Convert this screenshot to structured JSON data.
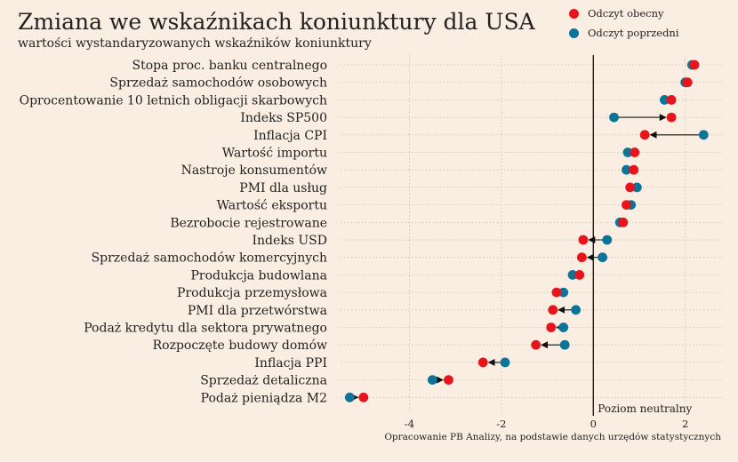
{
  "header": {
    "title": "Zmiana we wskaźnikach koniunktury dla USA",
    "subtitle": "wartości wystandaryzowanych wskaźników koniunktury"
  },
  "legend": {
    "current": "Odczyt obecny",
    "previous": "Odczyt poprzedni"
  },
  "source": "Opracowanie PB Analizy, na podstawie danych urzędów statystycznych",
  "neutral_label": "Poziom neutralny",
  "colors": {
    "current": "#e8141b",
    "previous": "#0e7399",
    "arrow": "#111111",
    "background": "#faeee2"
  },
  "chart_data": {
    "type": "dot-arrow",
    "title": "Zmiana we wskaźnikach koniunktury dla USA",
    "subtitle": "wartości wystandaryzowanych wskaźników koniunktury",
    "xlabel": "",
    "ylabel": "",
    "xlim": [
      -5.5,
      2.8
    ],
    "xticks": [
      -4,
      -2,
      0,
      2
    ],
    "tick_labels": [
      "-4",
      "-2",
      "0",
      "2"
    ],
    "grid": true,
    "legend_position": "top-right",
    "categories": [
      "Stopa proc. banku centralnego",
      "Sprzedaż samochodów osobowych",
      "Oprocentowanie 10 letnich obligacji skarbowych",
      "Indeks SP500",
      "Inflacja CPI",
      "Wartość importu",
      "Nastroje konsumentów",
      "PMI dla usług",
      "Wartość eksportu",
      "Bezrobocie rejestrowane",
      "Indeks USD",
      "Sprzedaż samochodów komercyjnych",
      "Produkcja budowlana",
      "Produkcja przemysłowa",
      "PMI dla przetwórstwa",
      "Podaż kredytu dla sektora prywatnego",
      "Rozpoczęte budowy domów",
      "Inflacja PPI",
      "Sprzedaż detaliczna",
      "Podaż pieniądza M2"
    ],
    "series": [
      {
        "name": "Odczyt poprzedni",
        "values": [
          2.15,
          2.0,
          1.55,
          0.45,
          2.4,
          0.75,
          0.72,
          0.95,
          0.82,
          0.58,
          0.3,
          0.2,
          -0.45,
          -0.65,
          -0.38,
          -0.65,
          -0.62,
          -1.92,
          -3.5,
          -5.3
        ]
      },
      {
        "name": "Odczyt obecny",
        "values": [
          2.2,
          2.05,
          1.7,
          1.7,
          1.12,
          0.9,
          0.88,
          0.8,
          0.72,
          0.65,
          -0.22,
          -0.25,
          -0.3,
          -0.8,
          -0.88,
          -0.92,
          -1.25,
          -2.4,
          -3.15,
          -5.0
        ]
      }
    ]
  }
}
